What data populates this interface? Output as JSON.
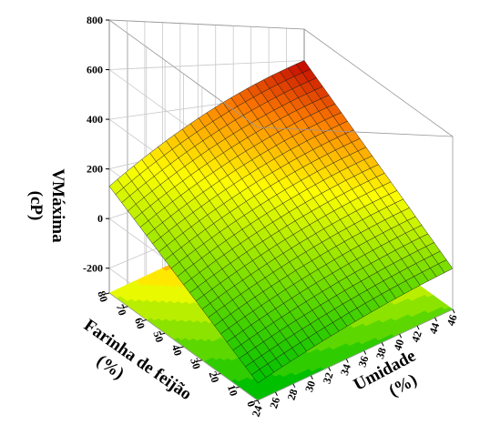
{
  "chart_data": {
    "type": "surface",
    "title": "",
    "zlabel": [
      "VMáxima",
      "(cP)"
    ],
    "xlabel": [
      "Umidade",
      "(%)"
    ],
    "ylabel": [
      "Farinha de feijão",
      "(%)"
    ],
    "x_ticks": [
      "24",
      "26",
      "28",
      "30",
      "32",
      "34",
      "36",
      "38",
      "40",
      "42",
      "44",
      "46"
    ],
    "y_ticks": [
      "0",
      "10",
      "20",
      "30",
      "40",
      "50",
      "60",
      "70",
      "80"
    ],
    "z_ticks": [
      "-200",
      "0",
      "200",
      "400",
      "600",
      "800"
    ],
    "xlim": [
      24,
      46
    ],
    "ylim": [
      0,
      80
    ],
    "zlim": [
      -300,
      800
    ],
    "surface_corners": [
      {
        "x": 24,
        "y": 0,
        "z": -230
      },
      {
        "x": 46,
        "y": 0,
        "z": -40
      },
      {
        "x": 24,
        "y": 80,
        "z": 130
      },
      {
        "x": 46,
        "y": 80,
        "z": 600
      }
    ],
    "color_scale": [
      "#00c000",
      "#80e000",
      "#ffff00",
      "#ff8000",
      "#c00000"
    ],
    "contour_projection": true,
    "grid": true
  }
}
